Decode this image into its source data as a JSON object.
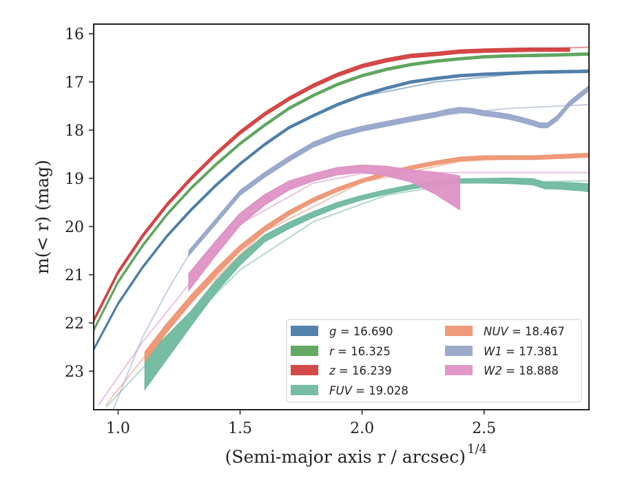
{
  "chart_data": {
    "type": "line",
    "xlabel": "(Semi-major axis r / arcsec)",
    "xlabel_exponent": "1/4",
    "ylabel": "m(< r) (mag)",
    "xlim": [
      0.9,
      2.93
    ],
    "ylim": [
      23.8,
      15.8
    ],
    "y_inverted": true,
    "xticks": [
      "1.0",
      "1.5",
      "2.0",
      "2.5"
    ],
    "yticks": [
      "16",
      "17",
      "18",
      "19",
      "20",
      "21",
      "22",
      "23"
    ],
    "grid": false,
    "legend_location": "lower-right",
    "legend_columns": 2,
    "series": [
      {
        "name": "g = 16.690",
        "color": "#4c7ba8",
        "x": [
          0.9,
          1.0,
          1.1,
          1.2,
          1.3,
          1.4,
          1.5,
          1.6,
          1.7,
          1.8,
          1.9,
          2.0,
          2.1,
          2.2,
          2.3,
          2.4,
          2.5,
          2.6,
          2.7,
          2.8,
          2.93
        ],
        "y": [
          22.55,
          21.6,
          20.85,
          20.2,
          19.65,
          19.15,
          18.7,
          18.3,
          17.95,
          17.7,
          17.47,
          17.28,
          17.13,
          17.0,
          16.93,
          16.87,
          16.84,
          16.82,
          16.8,
          16.79,
          16.78
        ],
        "width": 0.05,
        "model_x": [
          2.0,
          2.3,
          2.6,
          2.93
        ],
        "model_y": [
          17.3,
          17.0,
          16.85,
          16.75
        ]
      },
      {
        "name": "r = 16.325",
        "color": "#5ba35b",
        "x": [
          0.9,
          1.0,
          1.1,
          1.2,
          1.3,
          1.4,
          1.5,
          1.6,
          1.7,
          1.8,
          1.9,
          2.0,
          2.1,
          2.2,
          2.3,
          2.4,
          2.5,
          2.6,
          2.7,
          2.8,
          2.93
        ],
        "y": [
          22.15,
          21.15,
          20.4,
          19.75,
          19.2,
          18.72,
          18.28,
          17.9,
          17.55,
          17.28,
          17.05,
          16.87,
          16.74,
          16.64,
          16.57,
          16.52,
          16.48,
          16.46,
          16.45,
          16.44,
          16.42
        ],
        "width": 0.05,
        "model_x": [],
        "model_y": []
      },
      {
        "name": "z = 16.239",
        "color": "#d1403f",
        "x": [
          0.9,
          1.0,
          1.1,
          1.2,
          1.3,
          1.4,
          1.5,
          1.6,
          1.7,
          1.8,
          1.9,
          2.0,
          2.1,
          2.2,
          2.3,
          2.4,
          2.5,
          2.6,
          2.7,
          2.8,
          2.85
        ],
        "y": [
          21.95,
          20.95,
          20.2,
          19.55,
          19.0,
          18.5,
          18.05,
          17.67,
          17.35,
          17.08,
          16.85,
          16.67,
          16.55,
          16.46,
          16.42,
          16.37,
          16.35,
          16.34,
          16.33,
          16.33,
          16.33
        ],
        "width": 0.07,
        "model_x": [
          2.6,
          2.93
        ],
        "model_y": [
          16.33,
          16.28
        ]
      },
      {
        "name": "FUV = 19.028",
        "color": "#6fb99f",
        "x": [
          1.11,
          1.3,
          1.4,
          1.5,
          1.6,
          1.7,
          1.8,
          1.9,
          2.0,
          2.1,
          2.2,
          2.3,
          2.4,
          2.5,
          2.6,
          2.7,
          2.75,
          2.8,
          2.9,
          2.93
        ],
        "y": [
          23.05,
          21.9,
          21.25,
          20.7,
          20.25,
          19.98,
          19.75,
          19.55,
          19.4,
          19.28,
          19.18,
          19.1,
          19.05,
          19.05,
          19.05,
          19.07,
          19.15,
          19.15,
          19.18,
          19.2
        ],
        "width_x": [
          1.11,
          1.3,
          1.6,
          2.0,
          2.4,
          2.93
        ],
        "width": [
          0.65,
          0.3,
          0.14,
          0.09,
          0.08,
          0.16
        ],
        "model_x": [
          0.95,
          1.2,
          1.5,
          1.8,
          2.1,
          2.4,
          2.93
        ],
        "model_y": [
          23.75,
          22.4,
          20.9,
          19.9,
          19.35,
          19.1,
          19.05
        ]
      },
      {
        "name": "NUV = 18.467",
        "color": "#ee9674",
        "x": [
          1.11,
          1.2,
          1.3,
          1.4,
          1.5,
          1.6,
          1.7,
          1.8,
          1.9,
          2.0,
          2.1,
          2.2,
          2.3,
          2.4,
          2.5,
          2.6,
          2.7,
          2.8,
          2.93
        ],
        "y": [
          22.7,
          22.1,
          21.5,
          20.95,
          20.45,
          20.05,
          19.72,
          19.45,
          19.23,
          19.05,
          18.9,
          18.78,
          18.68,
          18.6,
          18.57,
          18.57,
          18.57,
          18.55,
          18.52
        ],
        "width_x": [
          1.11,
          1.3,
          1.6,
          2.0,
          2.93
        ],
        "width": [
          0.2,
          0.16,
          0.1,
          0.07,
          0.08
        ],
        "model_x": [
          0.95,
          1.1,
          1.3,
          1.6,
          2.0,
          2.4,
          2.93
        ],
        "model_y": [
          23.7,
          22.75,
          21.55,
          20.1,
          19.08,
          18.65,
          18.5
        ]
      },
      {
        "name": "W1 = 17.381",
        "color": "#97a6c9",
        "x": [
          1.29,
          1.4,
          1.5,
          1.6,
          1.7,
          1.8,
          1.9,
          2.0,
          2.1,
          2.2,
          2.3,
          2.35,
          2.4,
          2.45,
          2.5,
          2.55,
          2.6,
          2.65,
          2.7,
          2.73,
          2.76,
          2.8,
          2.85,
          2.9,
          2.93
        ],
        "y": [
          20.55,
          19.9,
          19.3,
          18.93,
          18.6,
          18.3,
          18.1,
          17.97,
          17.87,
          17.77,
          17.68,
          17.62,
          17.58,
          17.6,
          17.65,
          17.68,
          17.72,
          17.78,
          17.85,
          17.9,
          17.9,
          17.75,
          17.45,
          17.25,
          17.13
        ],
        "width": 0.1,
        "model_x": [
          0.98,
          1.1,
          1.2,
          1.3,
          1.4,
          1.5,
          1.6,
          1.8,
          2.0,
          2.2,
          2.4,
          2.6,
          2.93
        ],
        "model_y": [
          23.8,
          22.3,
          21.35,
          20.5,
          19.85,
          19.3,
          18.9,
          18.3,
          17.97,
          17.78,
          17.65,
          17.55,
          17.47
        ]
      },
      {
        "name": "W2 = 18.888",
        "color": "#dd92c4",
        "x": [
          1.29,
          1.4,
          1.5,
          1.6,
          1.7,
          1.8,
          1.9,
          2.0,
          2.1,
          2.2,
          2.3,
          2.4
        ],
        "y": [
          21.15,
          20.45,
          19.85,
          19.45,
          19.15,
          18.98,
          18.85,
          18.8,
          18.85,
          18.95,
          19.1,
          19.3
        ],
        "width_x": [
          1.29,
          1.5,
          1.8,
          2.0,
          2.2,
          2.3,
          2.4
        ],
        "width": [
          0.35,
          0.25,
          0.15,
          0.15,
          0.25,
          0.45,
          0.7
        ],
        "model_x": [
          0.92,
          1.1,
          1.29,
          1.5,
          1.8,
          2.0,
          2.2,
          2.93
        ],
        "model_y": [
          23.7,
          22.4,
          21.2,
          19.95,
          19.1,
          18.9,
          18.88,
          18.88
        ]
      }
    ]
  }
}
